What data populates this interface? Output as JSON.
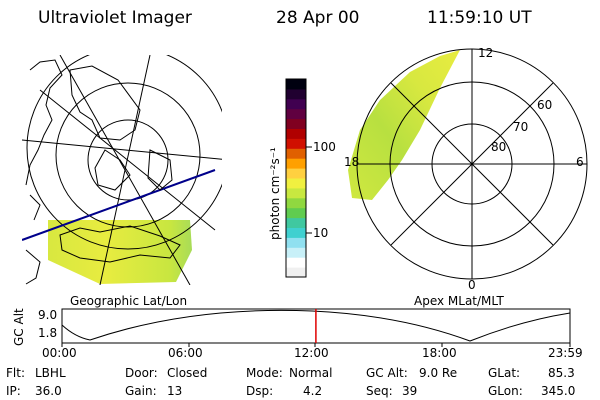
{
  "header": {
    "instrument": "Ultraviolet Imager",
    "date": "28 Apr 00",
    "time": "11:59:10 UT"
  },
  "colorbar": {
    "unit_label": "photon cm⁻²s⁻¹",
    "ticks": [
      "100",
      "10"
    ],
    "colors": [
      "#f0f0f0",
      "#ffffff",
      "#c8f0f8",
      "#90e0f0",
      "#40d0d0",
      "#40c8a0",
      "#60cc50",
      "#90d840",
      "#c8e840",
      "#f0f040",
      "#ffd040",
      "#ffa000",
      "#e06000",
      "#d01000",
      "#b00000",
      "#800020",
      "#600040",
      "#400050",
      "#200030",
      "#000010"
    ]
  },
  "panels": {
    "geo_label": "Geographic Lat/Lon",
    "apex_label": "Apex MLat/MLT",
    "apex_ring_labels": [
      "60",
      "70",
      "80"
    ],
    "apex_mlt_labels": [
      "12",
      "18",
      "6",
      "0"
    ]
  },
  "timeline": {
    "y_axis_label": "GC Alt",
    "y_ticks": [
      "9.0",
      "1.8"
    ],
    "x_ticks": [
      "00:00",
      "06:00",
      "12:00",
      "18:00",
      "23:59"
    ],
    "marker_time": "11:59:10",
    "marker_color": "#e00000"
  },
  "info": [
    {
      "label": "Flt:",
      "value": "LBHL"
    },
    {
      "label": "IP:",
      "value": "36.0"
    },
    {
      "label": "Door:",
      "value": "Closed"
    },
    {
      "label": "Gain:",
      "value": "13"
    },
    {
      "label": "Mode:",
      "value": "Normal"
    },
    {
      "label": "Dsp:",
      "value": "4.2"
    },
    {
      "label": "GC Alt:",
      "value": "9.0 Re"
    },
    {
      "label": "Seq:",
      "value": "39"
    },
    {
      "label": "GLat:",
      "value": "85.3"
    },
    {
      "label": "GLon:",
      "value": "345.0"
    }
  ]
}
